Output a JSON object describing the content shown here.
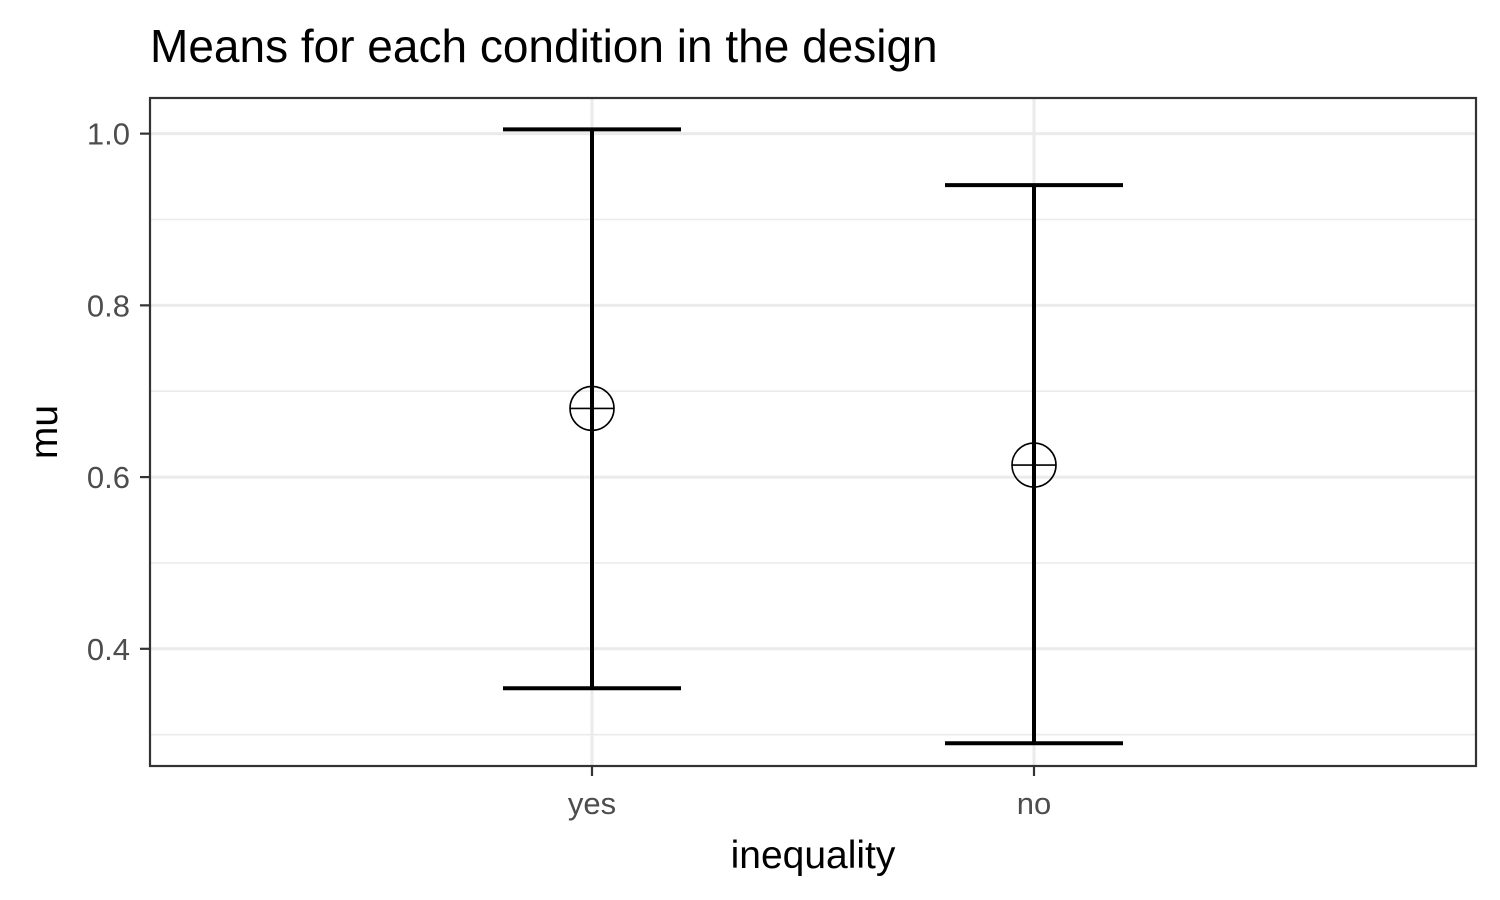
{
  "chart_data": {
    "type": "errorbar",
    "title": "Means for each condition in the design",
    "xlabel": "inequality",
    "ylabel": "mu",
    "categories": [
      "yes",
      "no"
    ],
    "points": [
      {
        "category": "yes",
        "mean": 0.68,
        "lower": 0.354,
        "upper": 1.005
      },
      {
        "category": "no",
        "mean": 0.614,
        "lower": 0.29,
        "upper": 0.94
      }
    ],
    "y_ticks": [
      0.4,
      0.6,
      0.8,
      1.0
    ],
    "y_tick_labels": [
      "0.4",
      "0.6",
      "0.8",
      "1.0"
    ],
    "ylim": [
      0.2635,
      1.0415
    ],
    "grid": true,
    "legend": "none"
  }
}
